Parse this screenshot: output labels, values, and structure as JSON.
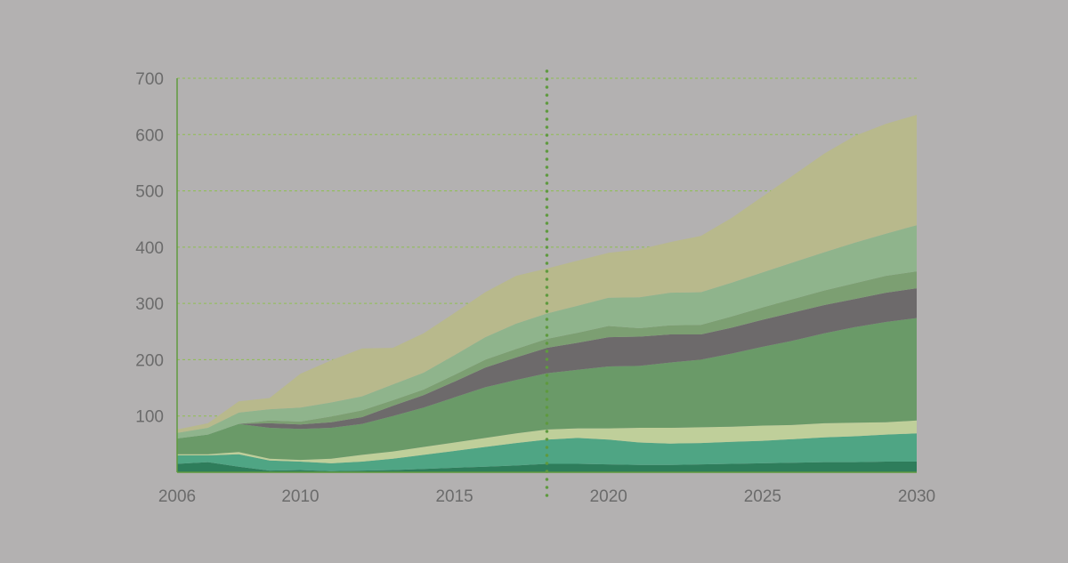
{
  "chart_data": {
    "type": "area",
    "stacked": true,
    "x": [
      2006,
      2007,
      2008,
      2009,
      2010,
      2011,
      2012,
      2013,
      2014,
      2015,
      2016,
      2017,
      2018,
      2019,
      2020,
      2021,
      2022,
      2023,
      2024,
      2025,
      2026,
      2027,
      2028,
      2029,
      2030
    ],
    "series": [
      {
        "color": "#2e7d5b",
        "values": [
          15,
          18,
          10,
          3,
          4,
          2,
          3,
          4,
          6,
          8,
          10,
          12,
          15,
          15,
          14,
          13,
          13,
          14,
          15,
          16,
          17,
          18,
          18,
          19,
          19
        ]
      },
      {
        "color": "#4fa584",
        "values": [
          15,
          12,
          22,
          18,
          15,
          14,
          16,
          20,
          25,
          30,
          35,
          40,
          43,
          46,
          44,
          40,
          38,
          38,
          39,
          40,
          42,
          44,
          46,
          48,
          50
        ]
      },
      {
        "color": "#bfcf9a",
        "values": [
          2,
          2,
          4,
          3,
          3,
          8,
          12,
          13,
          14,
          15,
          16,
          17,
          18,
          17,
          20,
          26,
          28,
          28,
          27,
          27,
          25,
          25,
          24,
          22,
          23
        ]
      },
      {
        "color": "#6a9a68",
        "values": [
          28,
          35,
          50,
          55,
          55,
          55,
          55,
          63,
          70,
          80,
          90,
          95,
          100,
          104,
          110,
          110,
          116,
          120,
          130,
          140,
          150,
          160,
          170,
          178,
          182
        ]
      },
      {
        "color": "#6d6a6b",
        "values": [
          0,
          0,
          0,
          8,
          8,
          10,
          12,
          18,
          22,
          28,
          35,
          40,
          45,
          48,
          52,
          52,
          50,
          45,
          46,
          48,
          50,
          50,
          50,
          52,
          53
        ]
      },
      {
        "color": "#7c9f72",
        "values": [
          0,
          0,
          0,
          5,
          5,
          10,
          12,
          10,
          10,
          12,
          14,
          15,
          16,
          18,
          20,
          15,
          16,
          17,
          20,
          22,
          24,
          26,
          28,
          30,
          30
        ]
      },
      {
        "color": "#8fb48c",
        "values": [
          10,
          12,
          20,
          20,
          25,
          25,
          25,
          28,
          30,
          35,
          40,
          45,
          45,
          48,
          50,
          55,
          58,
          58,
          60,
          62,
          65,
          68,
          72,
          75,
          82
        ]
      },
      {
        "color": "#b8b98c",
        "values": [
          6,
          8,
          20,
          20,
          60,
          75,
          85,
          65,
          70,
          75,
          80,
          85,
          80,
          80,
          80,
          85,
          90,
          100,
          115,
          135,
          155,
          175,
          190,
          195,
          196
        ]
      }
    ],
    "xticks": [
      "2006",
      "2010",
      "2015",
      "2020",
      "2025",
      "2030"
    ],
    "yticks": [
      "100",
      "200",
      "300",
      "400",
      "500",
      "600",
      "700"
    ],
    "xlim": [
      2006,
      2030
    ],
    "ylim": [
      0,
      700
    ],
    "grid": true,
    "marker_x": 2018
  }
}
